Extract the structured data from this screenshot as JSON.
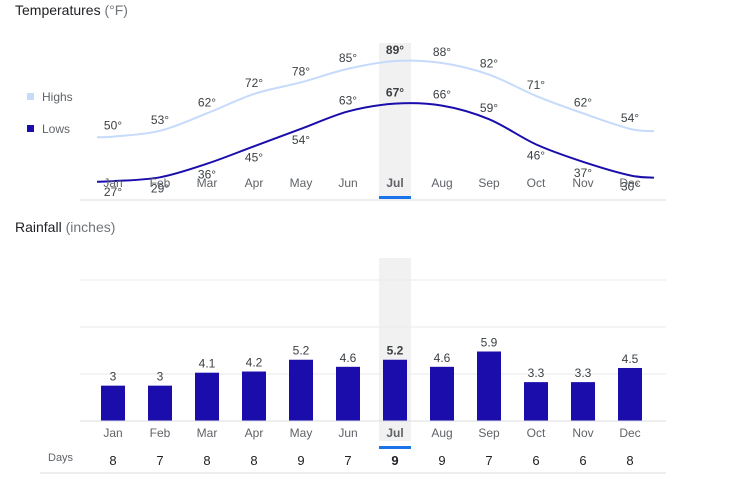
{
  "colors": {
    "highs": "#c6dafc",
    "lows": "#1a0dab",
    "bars": "#1a0dab",
    "highlight": "#f1f1f1",
    "selected_underline": "#1a73e8",
    "grid": "#e8eaed"
  },
  "temperature": {
    "title": "Temperatures",
    "unit": "(°F)",
    "legend_highs": "Highs",
    "legend_lows": "Lows"
  },
  "rainfall": {
    "title": "Rainfall",
    "unit": "(inches)"
  },
  "days": {
    "label": "Days"
  },
  "selected_month": "Jul",
  "chart_data": [
    {
      "type": "line",
      "title": "Temperatures (°F)",
      "categories": [
        "Jan",
        "Feb",
        "Mar",
        "Apr",
        "May",
        "Jun",
        "Jul",
        "Aug",
        "Sep",
        "Oct",
        "Nov",
        "Dec"
      ],
      "series": [
        {
          "name": "Highs",
          "values": [
            50,
            53,
            62,
            72,
            78,
            85,
            89,
            88,
            82,
            71,
            62,
            54
          ],
          "labels": [
            "50°",
            "53°",
            "62°",
            "72°",
            "78°",
            "85°",
            "89°",
            "88°",
            "82°",
            "71°",
            "62°",
            "54°"
          ]
        },
        {
          "name": "Lows",
          "values": [
            27,
            29,
            36,
            45,
            54,
            63,
            67,
            66,
            59,
            46,
            37,
            30
          ],
          "labels": [
            "27°",
            "29°",
            "36°",
            "45°",
            "54°",
            "63°",
            "67°",
            "66°",
            "59°",
            "46°",
            "37°",
            "30°"
          ]
        }
      ],
      "legend": "left"
    },
    {
      "type": "bar",
      "title": "Rainfall (inches)",
      "categories": [
        "Jan",
        "Feb",
        "Mar",
        "Apr",
        "May",
        "Jun",
        "Jul",
        "Aug",
        "Sep",
        "Oct",
        "Nov",
        "Dec"
      ],
      "values": [
        3,
        3,
        4.1,
        4.2,
        5.2,
        4.6,
        5.2,
        4.6,
        5.9,
        3.3,
        3.3,
        4.5
      ],
      "labels": [
        "3",
        "3",
        "4.1",
        "4.2",
        "5.2",
        "4.6",
        "5.2",
        "4.6",
        "5.9",
        "3.3",
        "3.3",
        "4.5"
      ],
      "grid": true
    },
    {
      "type": "table",
      "title": "Days",
      "categories": [
        "Jan",
        "Feb",
        "Mar",
        "Apr",
        "May",
        "Jun",
        "Jul",
        "Aug",
        "Sep",
        "Oct",
        "Nov",
        "Dec"
      ],
      "values": [
        8,
        7,
        8,
        8,
        9,
        7,
        9,
        9,
        7,
        6,
        6,
        8
      ]
    }
  ]
}
